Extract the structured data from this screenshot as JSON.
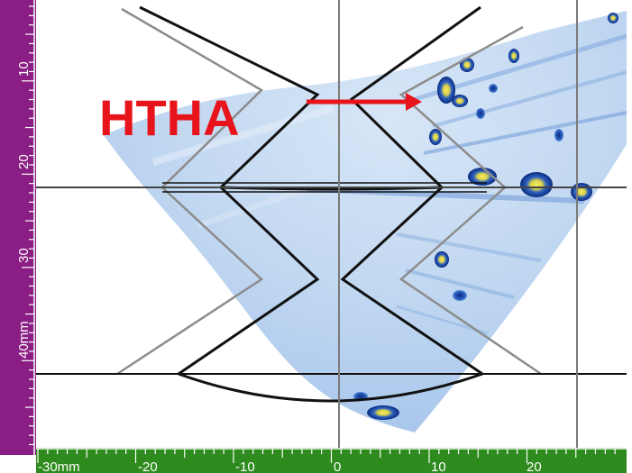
{
  "annotation": {
    "label": "HTHA",
    "color": "#e8141b"
  },
  "vertical_scale": {
    "unit": "mm",
    "ticks": [
      "10",
      "20",
      "30",
      "40mm"
    ]
  },
  "horizontal_scale": {
    "unit": "mm",
    "ticks": [
      "-30mm",
      "-20",
      "-10",
      "0",
      "10",
      "20"
    ]
  },
  "colors": {
    "vertical_ruler": "#8b1e84",
    "horizontal_ruler": "#2e8b1e",
    "beam_fill": "#bcd6f2",
    "indication_dark": "#0a2a80",
    "indication_hot": "#f3e35a",
    "geometry_outline": "#111111",
    "geometry_gray": "#8c8c8c",
    "cursor_line": "#7a7a7a"
  },
  "icons": {
    "annotation_arrow": "arrow-right-icon"
  }
}
